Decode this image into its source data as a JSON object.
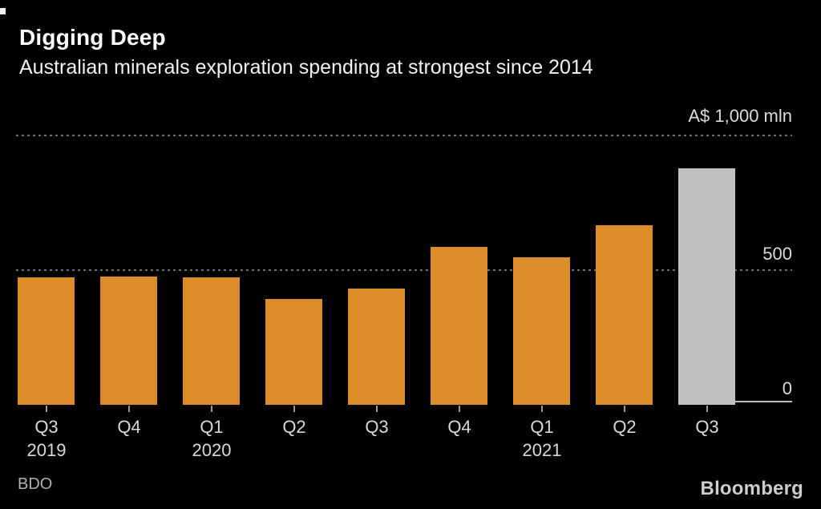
{
  "header": {
    "title": "Digging Deep",
    "subtitle": "Australian minerals exploration spending at strongest since 2014"
  },
  "chart_data": {
    "type": "bar",
    "title": "Digging Deep",
    "subtitle": "Australian minerals exploration spending at strongest since 2014",
    "categories": [
      "Q3",
      "Q4",
      "Q1",
      "Q2",
      "Q3",
      "Q4",
      "Q1",
      "Q2",
      "Q3"
    ],
    "year_row": [
      "2019",
      "",
      "2020",
      "",
      "",
      "",
      "2021",
      "",
      ""
    ],
    "values": [
      473,
      476,
      472,
      393,
      432,
      586,
      548,
      667,
      878
    ],
    "ylim": [
      0,
      1000
    ],
    "y_axis": {
      "unit_label": "A$ 1,000 mln",
      "gridline_values": [
        1000,
        500
      ],
      "ticks": [
        {
          "label": "500",
          "value": 500
        },
        {
          "label": "0",
          "value": 0
        }
      ]
    },
    "grid": "dotted-horizontal",
    "legend": "none",
    "bar_color": "#DC8C28",
    "highlight_color": "#C1C1C1",
    "highlight_index": 8
  },
  "footer": {
    "source": "BDO",
    "logo": "Bloomberg"
  }
}
